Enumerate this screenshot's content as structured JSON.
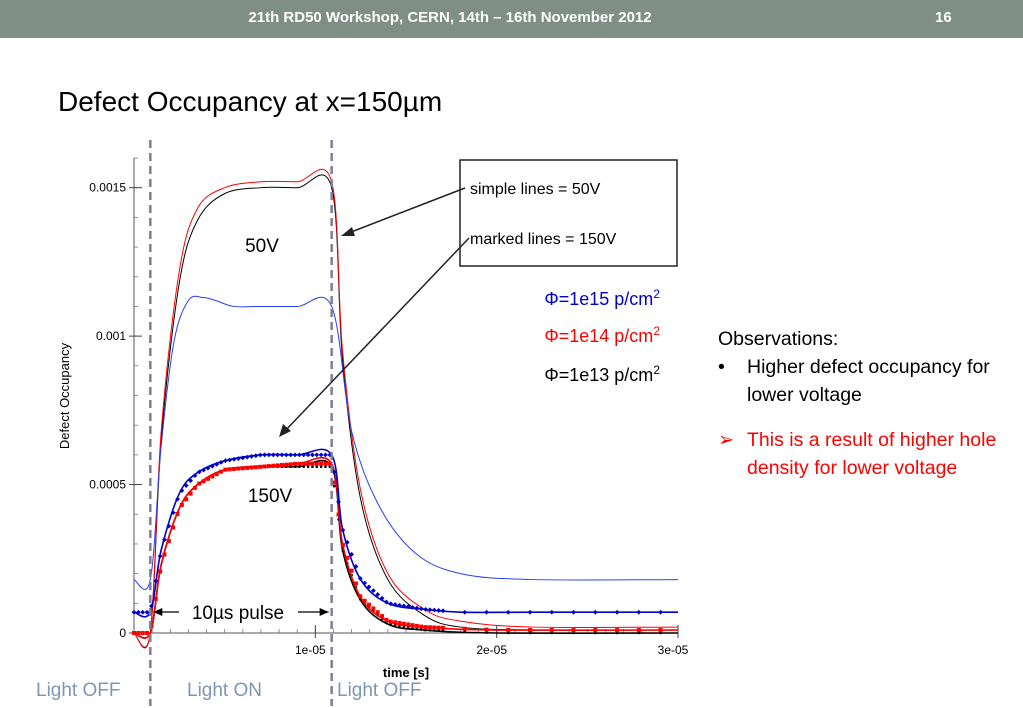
{
  "header": {
    "title": "21th  RD50 Workshop, CERN, 14th – 16th November 2012",
    "page_number": "16",
    "background_color": "#7f8f86"
  },
  "slide_title": "Defect Occupancy at x=150µm",
  "observations": {
    "heading": "Observations:",
    "items": [
      {
        "bullet": "•",
        "text": "Higher defect occupancy for lower voltage",
        "color": "#000000"
      },
      {
        "bullet": "➢",
        "text": "This is a result of higher hole density for lower voltage",
        "color": "#ff0000"
      }
    ]
  },
  "light_labels": {
    "off_left": "Light OFF",
    "on": "Light ON",
    "off_right": "Light OFF",
    "color": "#7e95b4"
  },
  "chart_data": {
    "type": "line",
    "title": "",
    "xlabel": "time [s]",
    "ylabel": "Defect Occupancy",
    "xlim": [
      0,
      3e-05
    ],
    "ylim": [
      0,
      0.0016
    ],
    "x_ticks": [
      1e-05,
      2e-05,
      3e-05
    ],
    "x_tick_labels": [
      "1e-05",
      "2e-05",
      "3e-05"
    ],
    "y_ticks": [
      0,
      0.0005,
      0.001,
      0.0015
    ],
    "y_tick_labels": [
      "0",
      "0.0005",
      "0.001",
      "0.0015"
    ],
    "grid": false,
    "light_on_time": 9e-07,
    "light_off_time": 1.09e-05,
    "annotations": {
      "voltage_50": "50V",
      "voltage_150": "150V",
      "pulse": "10µs pulse"
    },
    "legend_box": {
      "simple": "simple lines = 50V",
      "marked": "marked lines = 150V"
    },
    "fluence_legend": [
      {
        "text": "Φ=1e15 p/cm",
        "sup": "2",
        "color": "#0000cc"
      },
      {
        "text": "Φ=1e14 p/cm",
        "sup": "2",
        "color": "#ff0000"
      },
      {
        "text": "Φ=1e13 p/cm",
        "sup": "2",
        "color": "#000000"
      }
    ],
    "series": [
      {
        "voltage": "50V",
        "fluence": "1e13",
        "color": "#000000",
        "marked": false,
        "x": [
          0,
          9e-07,
          1.5e-06,
          2.5e-06,
          3.5e-06,
          5e-06,
          7e-06,
          9e-06,
          1.09e-05,
          1.15e-05,
          1.25e-05,
          1.4e-05,
          1.6e-05,
          1.8e-05,
          2.2e-05,
          3e-05
        ],
        "y": [
          0,
          0,
          0.00065,
          0.00118,
          0.00139,
          0.00148,
          0.0015,
          0.0015,
          0.0015,
          0.00092,
          0.00045,
          0.00018,
          6e-05,
          2e-05,
          1e-05,
          1e-05
        ]
      },
      {
        "voltage": "50V",
        "fluence": "1e14",
        "color": "#ff0000",
        "marked": false,
        "x": [
          0,
          9e-07,
          1.5e-06,
          2.5e-06,
          3.5e-06,
          5e-06,
          7e-06,
          9e-06,
          1.09e-05,
          1.15e-05,
          1.25e-05,
          1.4e-05,
          1.6e-05,
          1.8e-05,
          2.2e-05,
          3e-05
        ],
        "y": [
          0,
          0,
          0.00068,
          0.00122,
          0.00143,
          0.0015,
          0.00152,
          0.00152,
          0.00152,
          0.00095,
          0.00048,
          0.0002,
          8e-05,
          4e-05,
          2e-05,
          2e-05
        ]
      },
      {
        "voltage": "50V",
        "fluence": "1e15",
        "color": "#2b3ff0",
        "marked": false,
        "x": [
          0,
          9e-07,
          1.5e-06,
          2.2e-06,
          3e-06,
          3.8e-06,
          4.5e-06,
          5.5e-06,
          7e-06,
          9e-06,
          1.09e-05,
          1.2e-05,
          1.35e-05,
          1.55e-05,
          1.8e-05,
          2.2e-05,
          3e-05
        ],
        "y": [
          0.00018,
          0.00018,
          0.00063,
          0.00098,
          0.00112,
          0.00113,
          0.00112,
          0.0011,
          0.0011,
          0.0011,
          0.0011,
          0.00068,
          0.00043,
          0.00027,
          0.0002,
          0.00018,
          0.00018
        ]
      },
      {
        "voltage": "150V",
        "fluence": "1e13",
        "color": "#000000",
        "marked": true,
        "x": [
          0,
          9e-07,
          1.5e-06,
          2.5e-06,
          3.5e-06,
          5e-06,
          7e-06,
          9e-06,
          1.09e-05,
          1.15e-05,
          1.25e-05,
          1.4e-05,
          1.6e-05,
          2e-05,
          3e-05
        ],
        "y": [
          0,
          0,
          0.00023,
          0.00042,
          0.0005,
          0.00055,
          0.00056,
          0.00056,
          0.00056,
          0.00028,
          0.00011,
          3e-05,
          1e-05,
          0,
          0
        ]
      },
      {
        "voltage": "150V",
        "fluence": "1e14",
        "color": "#ff0000",
        "marked": true,
        "x": [
          0,
          9e-07,
          1.5e-06,
          2.5e-06,
          3.5e-06,
          5e-06,
          7e-06,
          9e-06,
          1.09e-05,
          1.15e-05,
          1.25e-05,
          1.4e-05,
          1.6e-05,
          2e-05,
          3e-05
        ],
        "y": [
          0,
          0,
          0.00023,
          0.00042,
          0.0005,
          0.00055,
          0.00056,
          0.00057,
          0.00057,
          0.0003,
          0.00012,
          4e-05,
          2e-05,
          1e-05,
          1e-05
        ]
      },
      {
        "voltage": "150V",
        "fluence": "1e15",
        "color": "#0000cc",
        "marked": true,
        "x": [
          0,
          9e-07,
          1.5e-06,
          2.5e-06,
          3.5e-06,
          5e-06,
          7e-06,
          9e-06,
          1.09e-05,
          1.15e-05,
          1.25e-05,
          1.4e-05,
          1.6e-05,
          1.8e-05,
          2.2e-05,
          3e-05
        ],
        "y": [
          7e-05,
          7e-05,
          0.00028,
          0.00047,
          0.00054,
          0.00058,
          0.0006,
          0.0006,
          0.0006,
          0.00035,
          0.00018,
          0.0001,
          8e-05,
          7e-05,
          7e-05,
          7e-05
        ]
      }
    ]
  }
}
